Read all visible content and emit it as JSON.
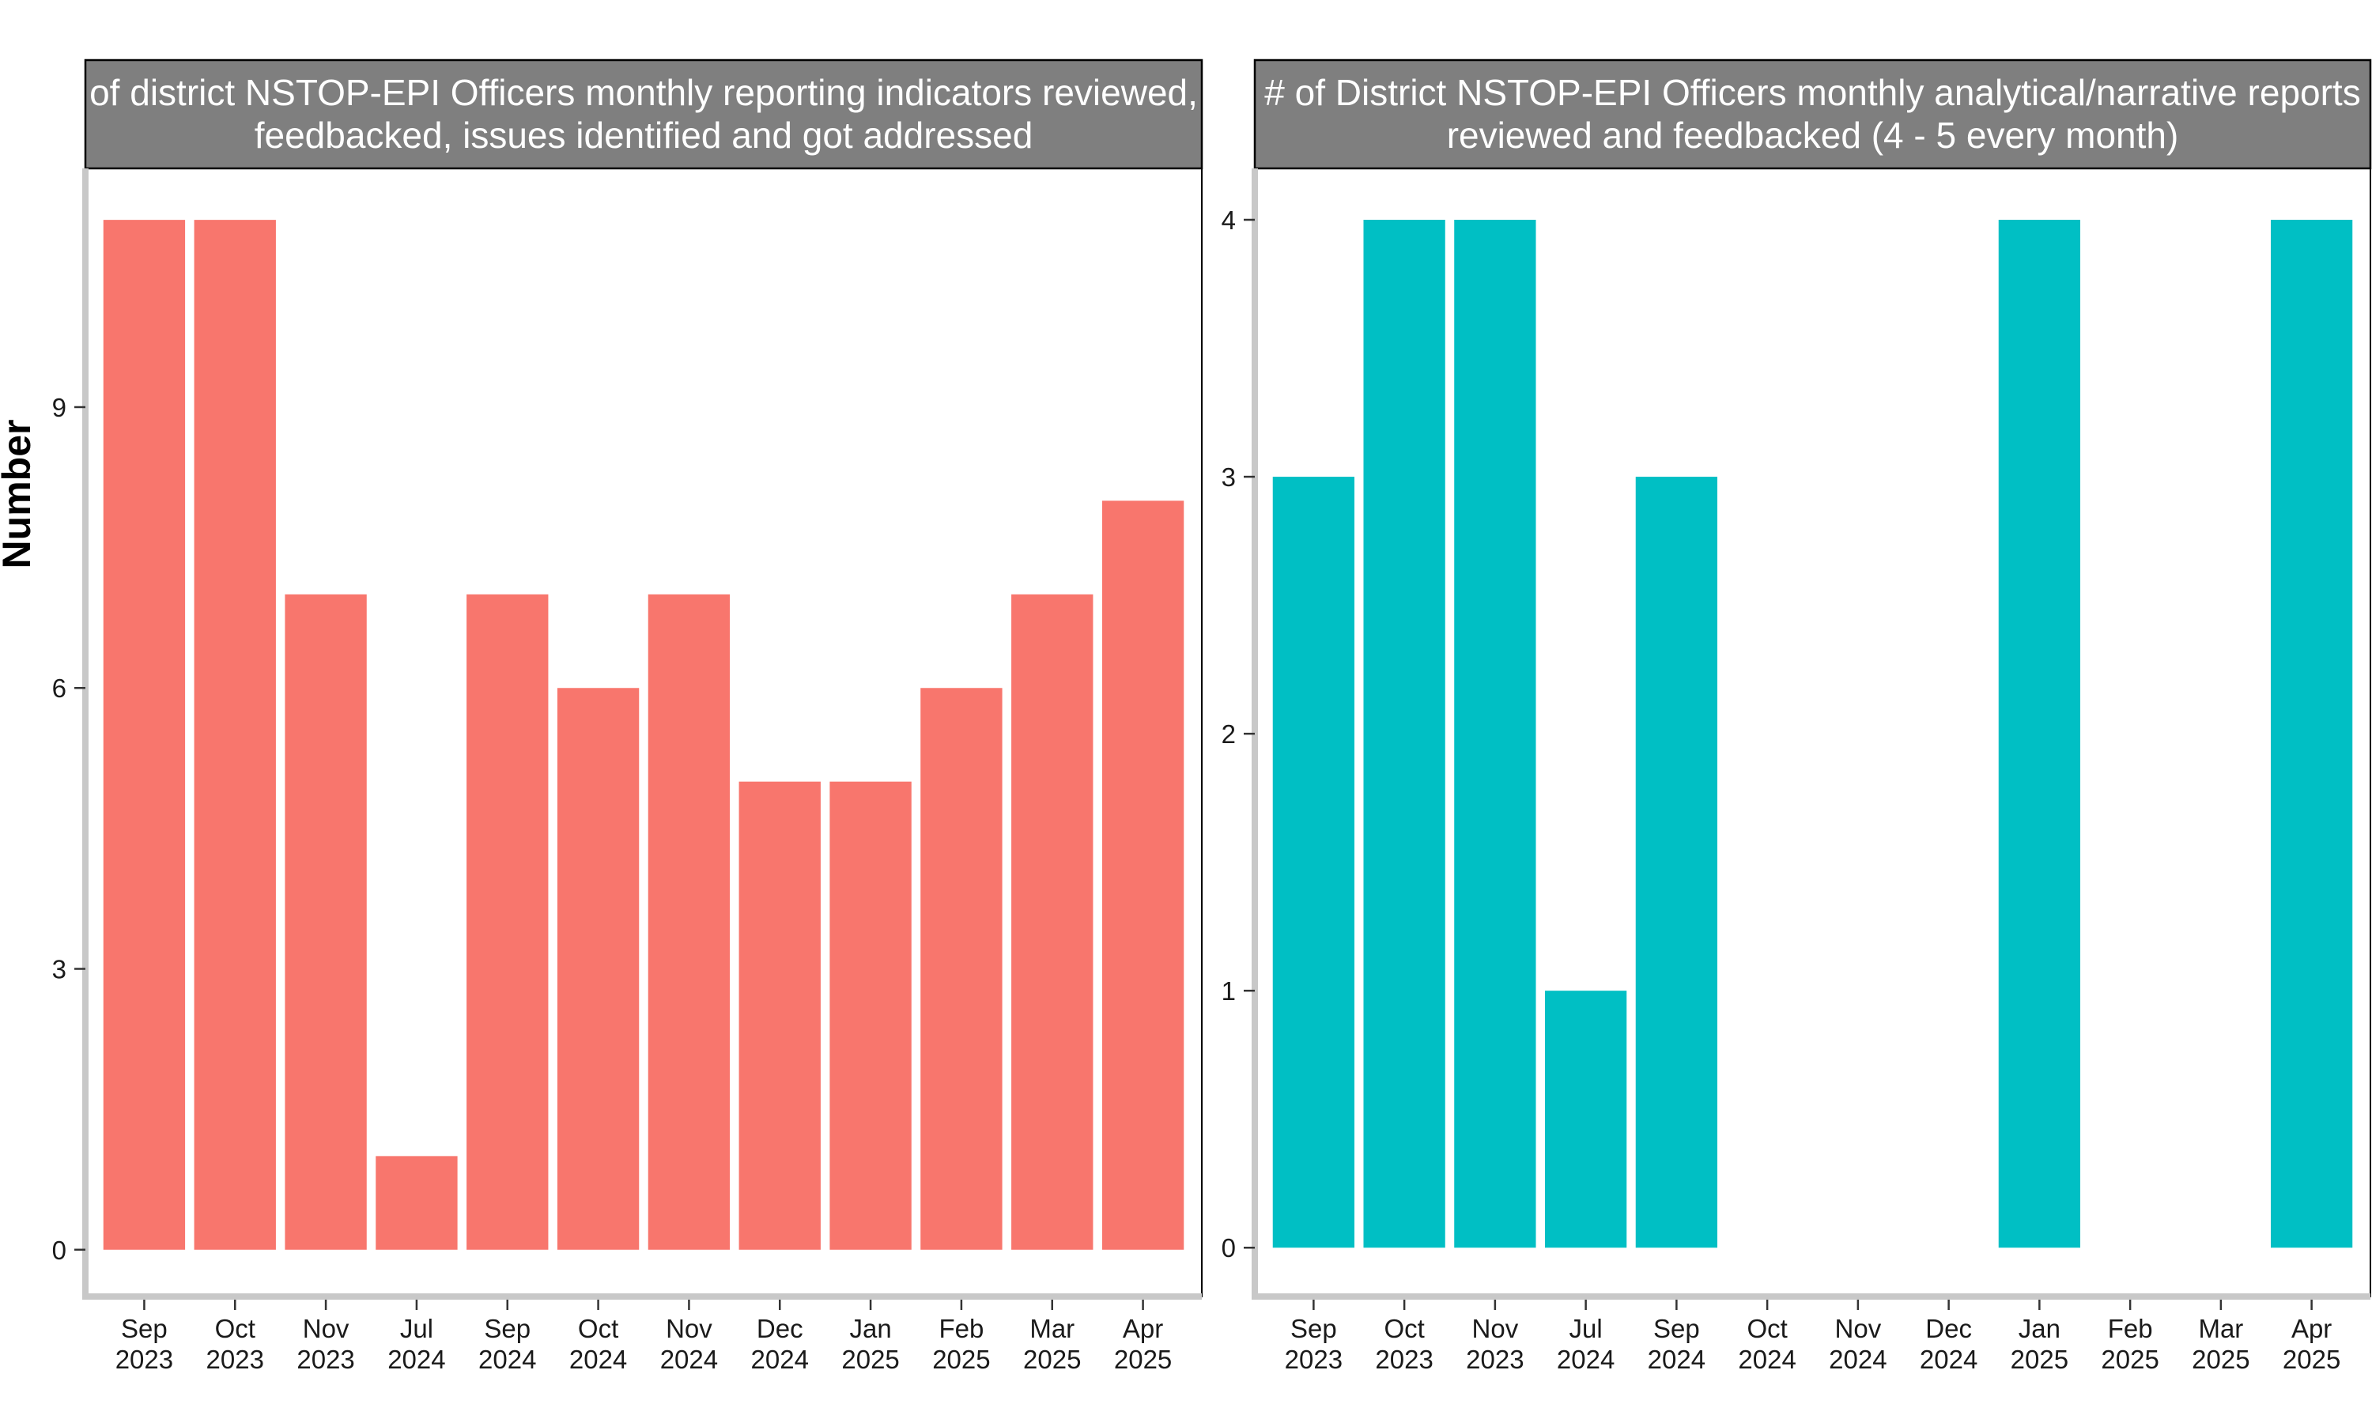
{
  "ylabel": "Number",
  "chart_data": [
    {
      "type": "bar",
      "title_lines": [
        "of district NSTOP-EPI Officers monthly reporting indicators reviewed,",
        "feedbacked, issues identified and got addressed"
      ],
      "ylabel": "Number",
      "xlabel": "",
      "color": "#F8766D",
      "ylim": [
        -0.5,
        11.55
      ],
      "yticks": [
        0,
        3,
        6,
        9
      ],
      "categories": [
        [
          "Sep",
          "2023"
        ],
        [
          "Oct",
          "2023"
        ],
        [
          "Nov",
          "2023"
        ],
        [
          "Jul",
          "2024"
        ],
        [
          "Sep",
          "2024"
        ],
        [
          "Oct",
          "2024"
        ],
        [
          "Nov",
          "2024"
        ],
        [
          "Dec",
          "2024"
        ],
        [
          "Jan",
          "2025"
        ],
        [
          "Feb",
          "2025"
        ],
        [
          "Mar",
          "2025"
        ],
        [
          "Apr",
          "2025"
        ]
      ],
      "values": [
        11,
        11,
        7,
        1,
        7,
        6,
        7,
        5,
        5,
        6,
        7,
        8
      ]
    },
    {
      "type": "bar",
      "title_lines": [
        "# of District NSTOP-EPI Officers monthly analytical/narrative reports",
        "reviewed and feedbacked (4 - 5 every month)"
      ],
      "ylabel": "",
      "xlabel": "",
      "color": "#00BFC4",
      "ylim": [
        -0.19,
        4.2
      ],
      "yticks": [
        0,
        1,
        2,
        3,
        4
      ],
      "categories": [
        [
          "Sep",
          "2023"
        ],
        [
          "Oct",
          "2023"
        ],
        [
          "Nov",
          "2023"
        ],
        [
          "Jul",
          "2024"
        ],
        [
          "Sep",
          "2024"
        ],
        [
          "Oct",
          "2024"
        ],
        [
          "Nov",
          "2024"
        ],
        [
          "Dec",
          "2024"
        ],
        [
          "Jan",
          "2025"
        ],
        [
          "Feb",
          "2025"
        ],
        [
          "Mar",
          "2025"
        ],
        [
          "Apr",
          "2025"
        ]
      ],
      "values": [
        3,
        4,
        4,
        1,
        3,
        null,
        null,
        null,
        4,
        null,
        null,
        4
      ]
    }
  ]
}
